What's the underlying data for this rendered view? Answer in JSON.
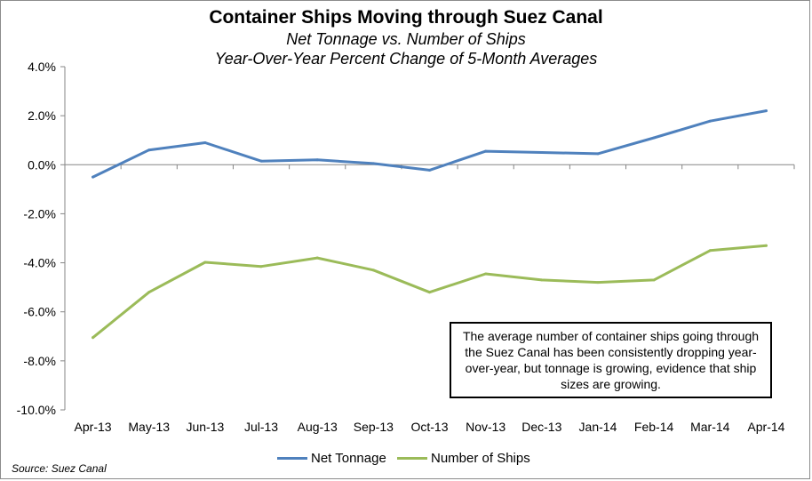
{
  "chart_data": {
    "type": "line",
    "title": "Container Ships Moving through Suez Canal",
    "subtitle_lines": [
      "Net Tonnage vs. Number of Ships",
      "Year-Over-Year Percent Change of 5-Month Averages"
    ],
    "categories": [
      "Apr-13",
      "May-13",
      "Jun-13",
      "Jul-13",
      "Aug-13",
      "Sep-13",
      "Oct-13",
      "Nov-13",
      "Dec-13",
      "Jan-14",
      "Feb-14",
      "Mar-14",
      "Apr-14"
    ],
    "series": [
      {
        "name": "Net Tonnage",
        "color": "#4f81bd",
        "values": [
          -0.5,
          0.6,
          0.9,
          0.15,
          0.2,
          0.05,
          -0.22,
          0.55,
          0.5,
          0.45,
          1.1,
          1.78,
          2.2
        ]
      },
      {
        "name": "Number of Ships",
        "color": "#9bbb59",
        "values": [
          -7.05,
          -5.2,
          -3.98,
          -4.15,
          -3.8,
          -4.3,
          -5.2,
          -4.45,
          -4.7,
          -4.8,
          -4.7,
          -3.5,
          -3.3
        ]
      }
    ],
    "ylim": [
      -10,
      4
    ],
    "yticks": [
      "4.0%",
      "2.0%",
      "0.0%",
      "-2.0%",
      "-4.0%",
      "-6.0%",
      "-8.0%",
      "-10.0%"
    ],
    "legend_position": "bottom",
    "grid": false,
    "annotation": "The average number of container ships going through the Suez Canal has been consistently dropping year-over-year, but tonnage is growing, evidence that ship sizes are growing.",
    "source": "Source: Suez Canal"
  }
}
